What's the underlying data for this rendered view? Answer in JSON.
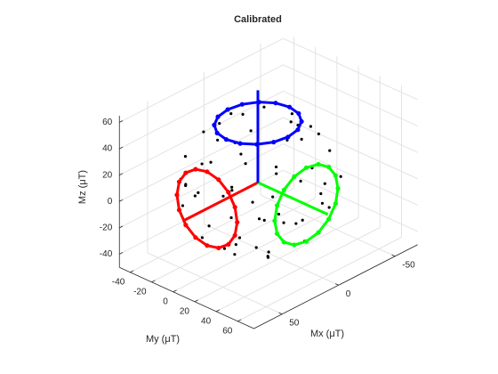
{
  "chart_data": {
    "type": "scatter3d",
    "title": "Calibrated",
    "xlabel": "Mx (μT)",
    "ylabel": "My (μT)",
    "zlabel": "Mz (μT)",
    "xlim": [
      -70,
      75
    ],
    "ylim": [
      -50,
      75
    ],
    "zlim": [
      -50,
      65
    ],
    "xticks": [
      -50,
      0,
      50
    ],
    "yticks": [
      -40,
      -20,
      0,
      20,
      40,
      60
    ],
    "zticks": [
      -40,
      -20,
      0,
      20,
      40,
      60
    ],
    "grid": true,
    "series": [
      {
        "color": "#000000",
        "marker": true,
        "line": "none",
        "x": [
          30,
          -30,
          10,
          -20,
          40,
          -42,
          5,
          25,
          -35,
          45,
          -10,
          35,
          -45,
          20,
          -25,
          48,
          -40,
          10,
          -15,
          30,
          -30,
          15,
          -5,
          35,
          -45,
          0,
          20,
          -20,
          40,
          -10,
          15,
          -15,
          0,
          25,
          -35,
          45,
          -25,
          38,
          -8,
          28,
          -40,
          12,
          -48,
          42,
          -22,
          8,
          -12,
          32,
          -30,
          22,
          -38,
          48,
          -5,
          18,
          -28,
          5,
          -45,
          35,
          -15,
          10
        ],
        "y": [
          20,
          25,
          -40,
          -35,
          -10,
          5,
          45,
          40,
          30,
          15,
          -48,
          -35,
          -20,
          45,
          40,
          5,
          -25,
          -45,
          -40,
          30,
          10,
          25,
          -30,
          -15,
          15,
          10,
          -10,
          -15,
          25,
          48,
          -20,
          15,
          -25,
          5,
          -5,
          -20,
          -42,
          -30,
          35,
          -38,
          35,
          48,
          0,
          20,
          -28,
          -12,
          28,
          12,
          -38,
          -44,
          20,
          -8,
          -49,
          36,
          -10,
          40,
          -10,
          38,
          -10,
          20
        ],
        "z": [
          35,
          33,
          28,
          30,
          28,
          26,
          20,
          15,
          20,
          15,
          10,
          5,
          5,
          -5,
          -15,
          -10,
          -15,
          -20,
          -25,
          -25,
          -38,
          -40,
          -40,
          -32,
          -15,
          -49,
          -45,
          -43,
          -15,
          5,
          44,
          45,
          43,
          43,
          35,
          10,
          -5,
          -12,
          -35,
          18,
          0,
          -8,
          -10,
          20,
          -35,
          -48,
          38,
          -36,
          12,
          -8,
          -25,
          8,
          -5,
          28,
          -40,
          -30,
          20,
          2,
          47,
          -45
        ]
      },
      {
        "color": "#0000ff",
        "marker": true,
        "line": "closed",
        "x": [
          28,
          25.9,
          19.8,
          10.7,
          0,
          -10.7,
          -19.8,
          -25.9,
          -28,
          -25.9,
          -19.8,
          -10.7,
          0,
          10.7,
          19.8,
          25.9
        ],
        "y": [
          0,
          10.7,
          19.8,
          25.9,
          28,
          25.9,
          19.8,
          10.7,
          0,
          -10.7,
          -19.8,
          -25.9,
          -28,
          -25.9,
          -19.8,
          -10.7
        ],
        "z": [
          45,
          45,
          45,
          45,
          45,
          45,
          45,
          45,
          45,
          45,
          45,
          45,
          45,
          45,
          45,
          45
        ]
      },
      {
        "color": "#ff0000",
        "marker": true,
        "line": "closed",
        "x": [
          45,
          45,
          45,
          45,
          45,
          45,
          45,
          45,
          45,
          45,
          45,
          45,
          45,
          45,
          45,
          45
        ],
        "y": [
          28,
          25.9,
          19.8,
          10.7,
          0,
          -10.7,
          -19.8,
          -25.9,
          -28,
          -25.9,
          -19.8,
          -10.7,
          0,
          10.7,
          19.8,
          25.9
        ],
        "z": [
          0,
          10.7,
          19.8,
          25.9,
          28,
          25.9,
          19.8,
          10.7,
          0,
          -10.7,
          -19.8,
          -25.9,
          -28,
          -25.9,
          -19.8,
          -10.7
        ]
      },
      {
        "color": "#00ff00",
        "marker": true,
        "line": "closed",
        "x": [
          28,
          25.9,
          19.8,
          10.7,
          0,
          -10.7,
          -19.8,
          -25.9,
          -28,
          -25.9,
          -19.8,
          -10.7,
          0,
          10.7,
          19.8,
          25.9
        ],
        "y": [
          45,
          45,
          45,
          45,
          45,
          45,
          45,
          45,
          45,
          45,
          45,
          45,
          45,
          45,
          45,
          45
        ],
        "z": [
          0,
          10.7,
          19.8,
          25.9,
          28,
          25.9,
          19.8,
          10.7,
          0,
          -10.7,
          -19.8,
          -25.9,
          -28,
          -25.9,
          -19.8,
          -10.7
        ]
      },
      {
        "color": "#ff0000",
        "marker": false,
        "line": "open",
        "x": [
          0,
          65
        ],
        "y": [
          0,
          0
        ],
        "z": [
          0,
          0
        ]
      },
      {
        "color": "#00ff00",
        "marker": false,
        "line": "open",
        "x": [
          0,
          0
        ],
        "y": [
          0,
          65
        ],
        "z": [
          0,
          0
        ]
      },
      {
        "color": "#0000ff",
        "marker": false,
        "line": "open",
        "x": [
          0,
          0
        ],
        "y": [
          0,
          0
        ],
        "z": [
          0,
          70
        ]
      }
    ]
  }
}
